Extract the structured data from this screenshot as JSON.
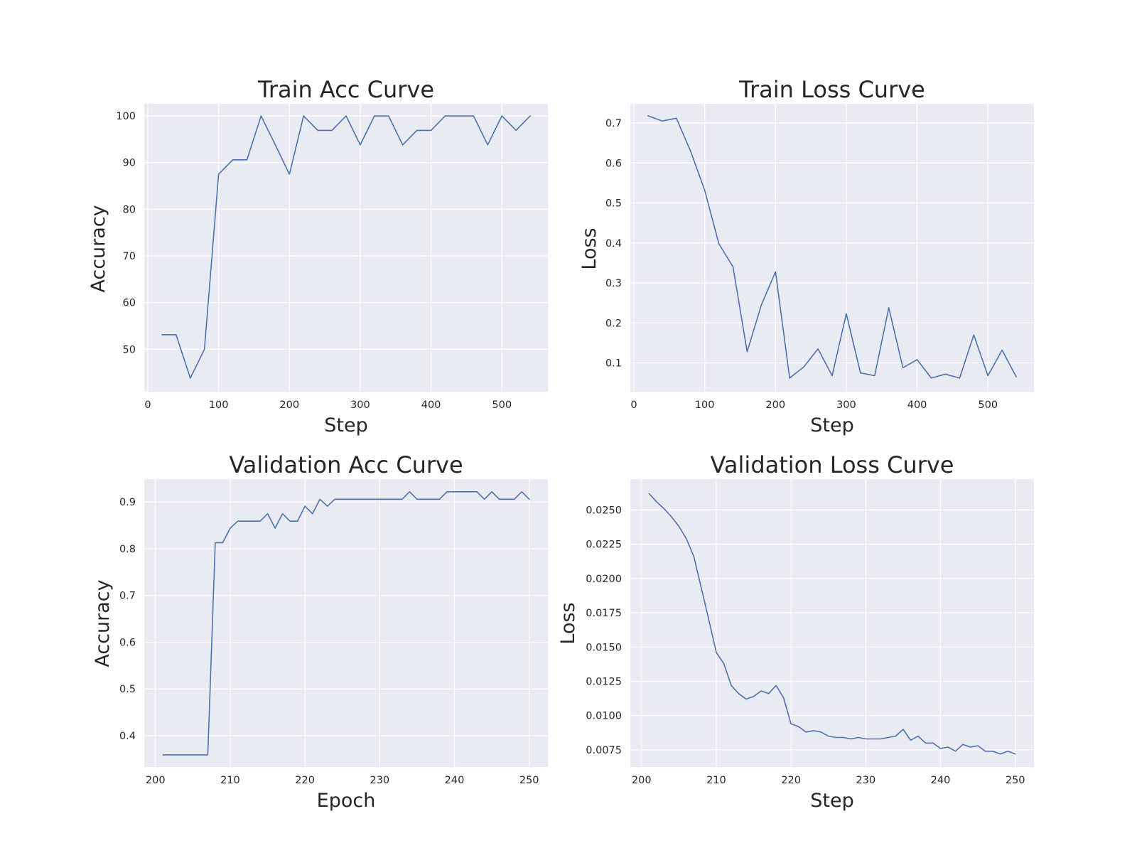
{
  "chart_data": [
    {
      "type": "line",
      "title": "Train Acc Curve",
      "xlabel": "Step",
      "ylabel": "Accuracy",
      "xlim": [
        -5,
        565
      ],
      "ylim": [
        40.9,
        102.6
      ],
      "xticks": [
        0,
        100,
        200,
        300,
        400,
        500
      ],
      "yticks": [
        50,
        60,
        70,
        80,
        90,
        100
      ],
      "grid": true,
      "series": [
        {
          "x": [
            20,
            40,
            60,
            80,
            100,
            120,
            140,
            160,
            180,
            200,
            220,
            240,
            260,
            280,
            300,
            320,
            340,
            360,
            380,
            400,
            420,
            440,
            460,
            480,
            500,
            520,
            540
          ],
          "y": [
            53.1,
            53.1,
            43.8,
            50.0,
            87.5,
            90.6,
            90.6,
            100,
            93.8,
            87.5,
            100,
            96.9,
            96.9,
            100,
            93.8,
            100,
            100,
            93.8,
            96.9,
            96.9,
            100,
            100,
            100,
            93.8,
            100,
            96.9,
            100
          ]
        }
      ]
    },
    {
      "type": "line",
      "title": "Train Loss Curve",
      "xlabel": "Step",
      "ylabel": "Loss",
      "xlim": [
        -5,
        565
      ],
      "ylim": [
        0.028,
        0.748
      ],
      "xticks": [
        0,
        100,
        200,
        300,
        400,
        500
      ],
      "yticks": [
        0.1,
        0.2,
        0.3,
        0.4,
        0.5,
        0.6,
        0.7
      ],
      "grid": true,
      "series": [
        {
          "x": [
            20,
            40,
            60,
            80,
            100,
            120,
            140,
            160,
            180,
            200,
            220,
            240,
            260,
            280,
            300,
            320,
            340,
            360,
            380,
            400,
            420,
            440,
            460,
            480,
            500,
            520,
            540
          ],
          "y": [
            0.718,
            0.705,
            0.712,
            0.63,
            0.532,
            0.398,
            0.34,
            0.128,
            0.245,
            0.328,
            0.062,
            0.09,
            0.135,
            0.068,
            0.223,
            0.075,
            0.068,
            0.238,
            0.088,
            0.108,
            0.062,
            0.072,
            0.062,
            0.17,
            0.068,
            0.132,
            0.065
          ]
        }
      ]
    },
    {
      "type": "line",
      "title": "Validation Acc Curve",
      "xlabel": "Epoch",
      "ylabel": "Accuracy",
      "xlim": [
        198.5,
        252.5
      ],
      "ylim": [
        0.333,
        0.949
      ],
      "xticks": [
        200,
        210,
        220,
        230,
        240,
        250
      ],
      "yticks": [
        0.4,
        0.5,
        0.6,
        0.7,
        0.8,
        0.9
      ],
      "grid": true,
      "series": [
        {
          "x": [
            201,
            202,
            203,
            204,
            205,
            206,
            207,
            208,
            209,
            210,
            211,
            212,
            213,
            214,
            215,
            216,
            217,
            218,
            219,
            220,
            221,
            222,
            223,
            224,
            225,
            226,
            227,
            228,
            229,
            230,
            231,
            232,
            233,
            234,
            235,
            236,
            237,
            238,
            239,
            240,
            241,
            242,
            243,
            244,
            245,
            246,
            247,
            248,
            249,
            250
          ],
          "y": [
            0.359,
            0.359,
            0.359,
            0.359,
            0.359,
            0.359,
            0.359,
            0.813,
            0.813,
            0.844,
            0.859,
            0.859,
            0.859,
            0.859,
            0.875,
            0.844,
            0.875,
            0.859,
            0.859,
            0.891,
            0.875,
            0.906,
            0.891,
            0.906,
            0.906,
            0.906,
            0.906,
            0.906,
            0.906,
            0.906,
            0.906,
            0.906,
            0.906,
            0.922,
            0.906,
            0.906,
            0.906,
            0.906,
            0.922,
            0.922,
            0.922,
            0.922,
            0.922,
            0.906,
            0.922,
            0.906,
            0.906,
            0.906,
            0.922,
            0.906
          ]
        }
      ]
    },
    {
      "type": "line",
      "title": "Validation Loss Curve",
      "xlabel": "Step",
      "ylabel": "Loss",
      "xlim": [
        198.5,
        252.5
      ],
      "ylim": [
        0.00625,
        0.02725
      ],
      "xticks": [
        200,
        210,
        220,
        230,
        240,
        250
      ],
      "yticks": [
        0.0075,
        0.01,
        0.0125,
        0.015,
        0.0175,
        0.02,
        0.0225,
        0.025
      ],
      "ytick_labels": [
        "0.0075",
        "0.0100",
        "0.0125",
        "0.0150",
        "0.0175",
        "0.0200",
        "0.0225",
        "0.0250"
      ],
      "grid": true,
      "series": [
        {
          "x": [
            201,
            202,
            203,
            204,
            205,
            206,
            207,
            208,
            209,
            210,
            211,
            212,
            213,
            214,
            215,
            216,
            217,
            218,
            219,
            220,
            221,
            222,
            223,
            224,
            225,
            226,
            227,
            228,
            229,
            230,
            231,
            232,
            233,
            234,
            235,
            236,
            237,
            238,
            239,
            240,
            241,
            242,
            243,
            244,
            245,
            246,
            247,
            248,
            249,
            250
          ],
          "y": [
            0.0262,
            0.0256,
            0.0251,
            0.0245,
            0.0238,
            0.0229,
            0.0216,
            0.0193,
            0.017,
            0.0146,
            0.0138,
            0.0122,
            0.0116,
            0.0112,
            0.0114,
            0.0118,
            0.0116,
            0.0122,
            0.0113,
            0.0094,
            0.0092,
            0.0088,
            0.0089,
            0.0088,
            0.0085,
            0.0084,
            0.0084,
            0.0083,
            0.0084,
            0.0083,
            0.0083,
            0.0083,
            0.0084,
            0.0085,
            0.009,
            0.0082,
            0.0085,
            0.008,
            0.008,
            0.0076,
            0.0077,
            0.0074,
            0.0079,
            0.0077,
            0.0078,
            0.0074,
            0.0074,
            0.0072,
            0.0074,
            0.0072
          ]
        }
      ]
    }
  ]
}
